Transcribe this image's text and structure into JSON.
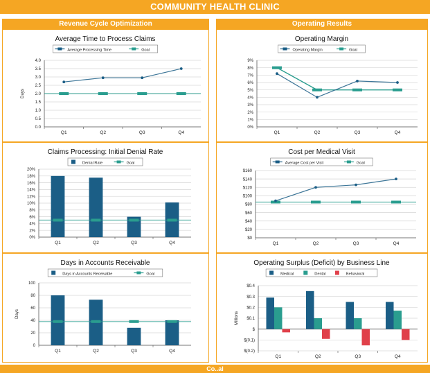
{
  "header": {
    "title": "COMMUNITY HEALTH CLINIC"
  },
  "sections": {
    "left": "Revenue Cycle Optimization",
    "right": "Operating Results"
  },
  "footer": {
    "text": "Co..al"
  },
  "colors": {
    "orange": "#f5a623",
    "blue": "#1b5e86",
    "teal": "#2a9d8f",
    "red": "#e0404a",
    "grid": "#d6d6d6"
  },
  "chart_data": [
    {
      "id": "c1",
      "type": "line",
      "title": "Average Time to Process Claims",
      "ylabel": "Days",
      "categories": [
        "Q1",
        "Q2",
        "Q3",
        "Q4"
      ],
      "ylim": [
        0,
        4
      ],
      "yticks": [
        0,
        0.5,
        1,
        1.5,
        2,
        2.5,
        3,
        3.5,
        4
      ],
      "ytick_labels": [
        "0.0",
        "0.5",
        "1.0",
        "1.5",
        "2.0",
        "2.5",
        "3.0",
        "3.5",
        "4.0"
      ],
      "series": [
        {
          "name": "Average Processing Time",
          "style": "line",
          "color": "#1b5e86",
          "values": [
            2.7,
            2.95,
            2.95,
            3.5
          ]
        },
        {
          "name": "Goal",
          "style": "goal",
          "color": "#2a9d8f",
          "values": [
            2,
            2,
            2,
            2
          ]
        }
      ]
    },
    {
      "id": "c2",
      "type": "line",
      "title": "Operating Margin",
      "ylabel": "",
      "categories": [
        "Q1",
        "Q2",
        "Q3",
        "Q4"
      ],
      "ylim": [
        0,
        9
      ],
      "yticks": [
        0,
        1,
        2,
        3,
        4,
        5,
        6,
        7,
        8,
        9
      ],
      "ytick_labels": [
        "0%",
        "1%",
        "2%",
        "3%",
        "4%",
        "5%",
        "6%",
        "7%",
        "8%",
        "9%"
      ],
      "series": [
        {
          "name": "Operating Margin",
          "style": "line",
          "color": "#1b5e86",
          "values": [
            7.2,
            4,
            6.2,
            6
          ]
        },
        {
          "name": "Goal",
          "style": "goal-line",
          "color": "#2a9d8f",
          "values": [
            8,
            5,
            5,
            5
          ]
        }
      ]
    },
    {
      "id": "c3",
      "type": "bar",
      "title": "Claims Processing: Initial Denial Rate",
      "ylabel": "",
      "categories": [
        "Q1",
        "Q2",
        "Q3",
        "Q4"
      ],
      "ylim": [
        0,
        20
      ],
      "yticks": [
        0,
        2,
        4,
        6,
        8,
        10,
        12,
        14,
        16,
        18,
        20
      ],
      "ytick_labels": [
        "0%",
        "2%",
        "4%",
        "6%",
        "8%",
        "10%",
        "12%",
        "14%",
        "16%",
        "18%",
        "20%"
      ],
      "series": [
        {
          "name": "Denial Rate",
          "style": "bar",
          "color": "#1b5e86",
          "values": [
            18,
            17.5,
            6,
            10.2
          ]
        },
        {
          "name": "Goal",
          "style": "goal",
          "color": "#2a9d8f",
          "values": [
            5,
            5,
            5,
            5
          ]
        }
      ]
    },
    {
      "id": "c4",
      "type": "line",
      "title": "Cost per Medical Visit",
      "ylabel": "",
      "categories": [
        "Q1",
        "Q2",
        "Q3",
        "Q4"
      ],
      "ylim": [
        0,
        160
      ],
      "yticks": [
        0,
        20,
        40,
        60,
        80,
        100,
        120,
        140,
        160
      ],
      "ytick_labels": [
        "$0",
        "$20",
        "$40",
        "$60",
        "$80",
        "$100",
        "$120",
        "$140",
        "$160"
      ],
      "series": [
        {
          "name": "Average Cost per Visit",
          "style": "line",
          "color": "#1b5e86",
          "values": [
            88,
            120,
            126,
            140
          ]
        },
        {
          "name": "Goal",
          "style": "goal",
          "color": "#2a9d8f",
          "values": [
            85,
            85,
            85,
            85
          ]
        }
      ]
    },
    {
      "id": "c5",
      "type": "bar",
      "title": "Days in Accounts Receivable",
      "ylabel": "Days",
      "categories": [
        "Q1",
        "Q2",
        "Q3",
        "Q4"
      ],
      "ylim": [
        0,
        100
      ],
      "yticks": [
        0,
        20,
        40,
        60,
        80,
        100
      ],
      "ytick_labels": [
        "0",
        "20",
        "40",
        "60",
        "80",
        "100"
      ],
      "series": [
        {
          "name": "Days in Accounts Receivable",
          "style": "bar",
          "color": "#1b5e86",
          "values": [
            80,
            73,
            28,
            40
          ]
        },
        {
          "name": "Goal",
          "style": "goal",
          "color": "#2a9d8f",
          "values": [
            38,
            38,
            38,
            38
          ]
        }
      ]
    },
    {
      "id": "c6",
      "type": "bar",
      "title": "Operating Surplus (Deficit) by Business Line",
      "ylabel": "Millions",
      "categories": [
        "Q1",
        "Q2",
        "Q3",
        "Q4"
      ],
      "ylim": [
        -0.2,
        0.4
      ],
      "yticks": [
        -0.2,
        -0.1,
        0,
        0.1,
        0.2,
        0.3,
        0.4
      ],
      "ytick_labels": [
        "$(0.2)",
        "$(0.1)",
        "$",
        "$0.1",
        "$0.2",
        "$0.3",
        "$0.4"
      ],
      "series": [
        {
          "name": "Medical",
          "style": "group",
          "color": "#1b5e86",
          "values": [
            0.29,
            0.35,
            0.25,
            0.25
          ]
        },
        {
          "name": "Dental",
          "style": "group",
          "color": "#2a9d8f",
          "values": [
            0.2,
            0.1,
            0.1,
            0.17
          ]
        },
        {
          "name": "Behavioral",
          "style": "group",
          "color": "#e0404a",
          "values": [
            -0.03,
            -0.09,
            -0.15,
            -0.1
          ]
        }
      ]
    }
  ]
}
